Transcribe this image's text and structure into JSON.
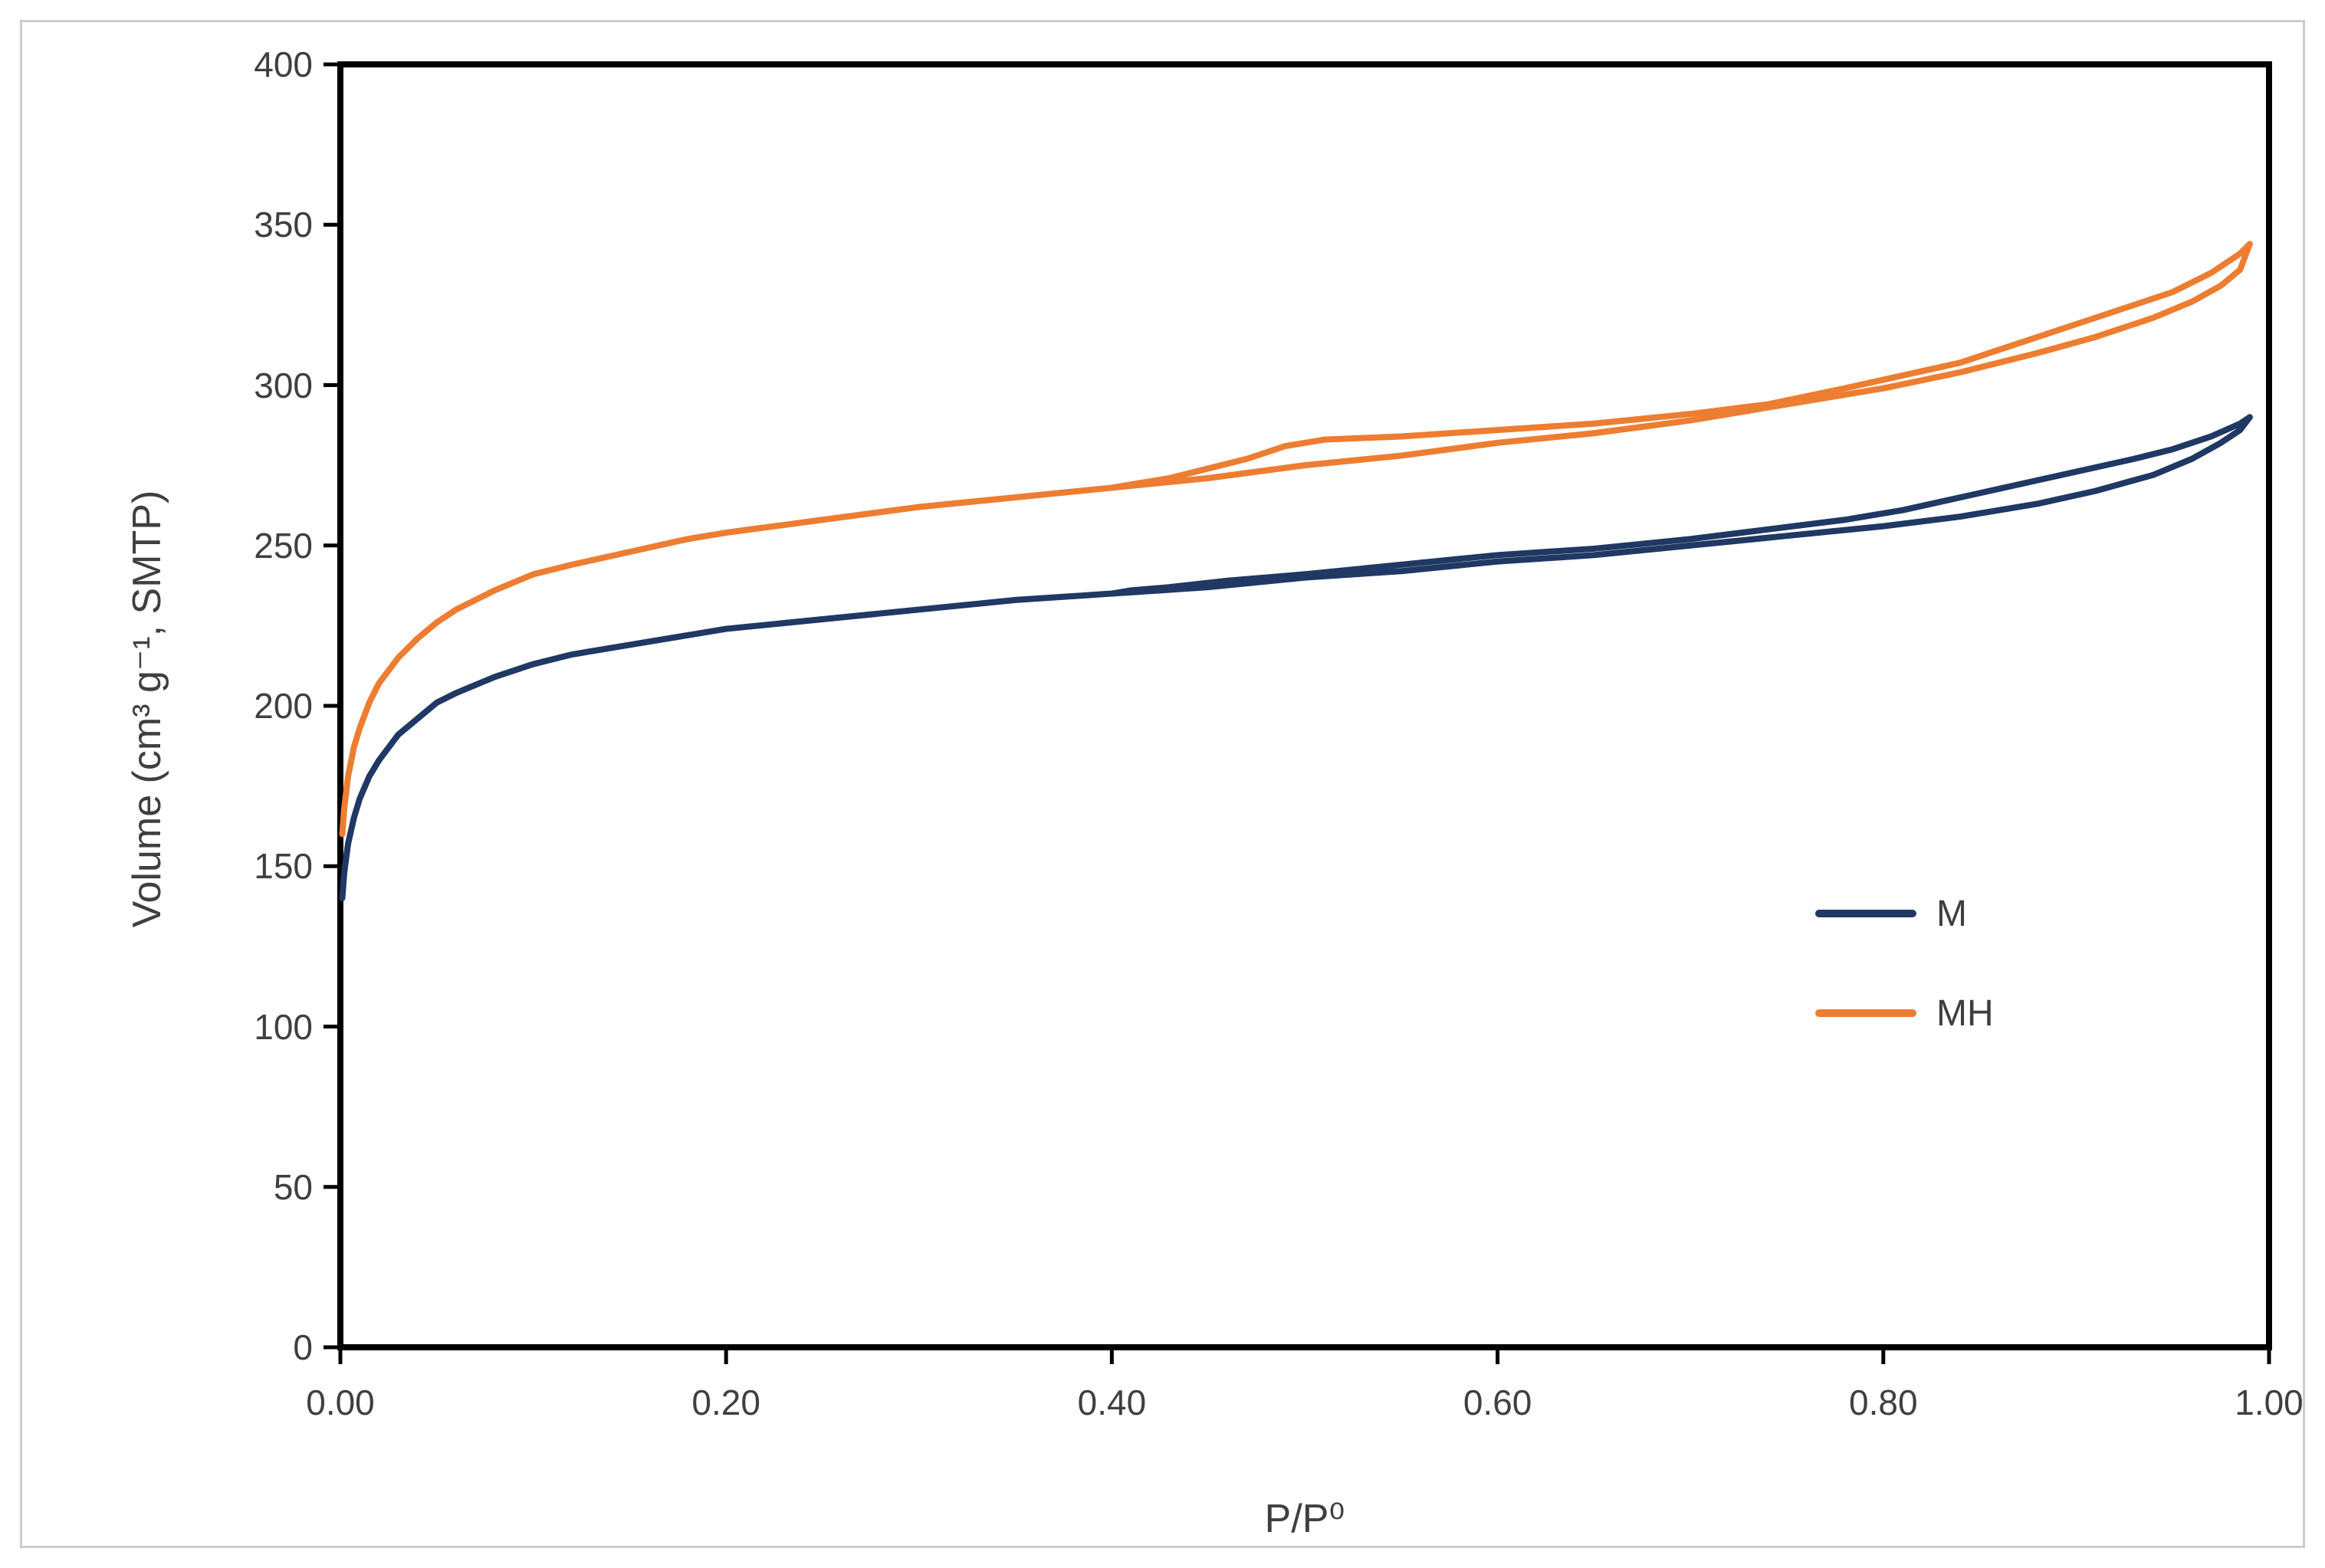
{
  "figure": {
    "background": "#ffffff",
    "frame_border_color": "#cdcdcd",
    "axis_color": "#000000",
    "label_color": "#3f3f3f"
  },
  "axes": {
    "y_label": "Volume (cm³ g⁻¹, SMTP)",
    "x_label": "P/P⁰",
    "y_ticks": [
      "0",
      "50",
      "100",
      "150",
      "200",
      "250",
      "300",
      "350",
      "400"
    ],
    "x_ticks": [
      "0.00",
      "0.20",
      "0.40",
      "0.60",
      "0.80",
      "1.00"
    ],
    "y_range": [
      0,
      400
    ],
    "x_range": [
      0,
      1
    ]
  },
  "legend": {
    "items": [
      {
        "label": "M",
        "color": "#1F3864"
      },
      {
        "label": "MH",
        "color": "#ED7D31"
      }
    ]
  },
  "chart_data": {
    "type": "line",
    "title": "",
    "xlabel": "P/P⁰",
    "ylabel": "Volume (cm³ g⁻¹, SMTP)",
    "xlim": [
      0,
      1
    ],
    "ylim": [
      0,
      400
    ],
    "grid": false,
    "legend_position": "inside-right-center",
    "description": "Nitrogen adsorption-desorption isotherms with hysteresis loops for samples M and MH",
    "series": [
      {
        "name": "M",
        "color": "#1F3864",
        "branches": {
          "adsorption": [
            [
              0.001,
              140
            ],
            [
              0.002,
              148
            ],
            [
              0.004,
              157
            ],
            [
              0.007,
              165
            ],
            [
              0.01,
              171
            ],
            [
              0.015,
              178
            ],
            [
              0.02,
              183
            ],
            [
              0.03,
              191
            ],
            [
              0.04,
              196
            ],
            [
              0.05,
              201
            ],
            [
              0.06,
              204
            ],
            [
              0.08,
              209
            ],
            [
              0.1,
              213
            ],
            [
              0.12,
              216
            ],
            [
              0.15,
              219
            ],
            [
              0.18,
              222
            ],
            [
              0.2,
              224
            ],
            [
              0.25,
              227
            ],
            [
              0.3,
              230
            ],
            [
              0.35,
              233
            ],
            [
              0.4,
              235
            ],
            [
              0.45,
              237
            ],
            [
              0.5,
              240
            ],
            [
              0.55,
              242
            ],
            [
              0.6,
              245
            ],
            [
              0.65,
              247
            ],
            [
              0.7,
              250
            ],
            [
              0.75,
              253
            ],
            [
              0.8,
              256
            ],
            [
              0.84,
              259
            ],
            [
              0.88,
              263
            ],
            [
              0.91,
              267
            ],
            [
              0.94,
              272
            ],
            [
              0.96,
              277
            ],
            [
              0.975,
              282
            ],
            [
              0.985,
              286
            ],
            [
              0.99,
              290
            ]
          ],
          "desorption": [
            [
              0.99,
              290
            ],
            [
              0.985,
              288
            ],
            [
              0.97,
              284
            ],
            [
              0.95,
              280
            ],
            [
              0.93,
              277
            ],
            [
              0.9,
              273
            ],
            [
              0.87,
              269
            ],
            [
              0.84,
              265
            ],
            [
              0.81,
              261
            ],
            [
              0.78,
              258
            ],
            [
              0.74,
              255
            ],
            [
              0.7,
              252
            ],
            [
              0.65,
              249
            ],
            [
              0.6,
              247
            ],
            [
              0.55,
              244
            ],
            [
              0.5,
              241
            ],
            [
              0.46,
              239
            ],
            [
              0.43,
              237
            ],
            [
              0.41,
              236
            ],
            [
              0.4,
              235
            ]
          ]
        }
      },
      {
        "name": "MH",
        "color": "#ED7D31",
        "branches": {
          "adsorption": [
            [
              0.001,
              160
            ],
            [
              0.002,
              168
            ],
            [
              0.004,
              178
            ],
            [
              0.007,
              187
            ],
            [
              0.01,
              193
            ],
            [
              0.015,
              201
            ],
            [
              0.02,
              207
            ],
            [
              0.03,
              215
            ],
            [
              0.04,
              221
            ],
            [
              0.05,
              226
            ],
            [
              0.06,
              230
            ],
            [
              0.08,
              236
            ],
            [
              0.1,
              241
            ],
            [
              0.12,
              244
            ],
            [
              0.15,
              248
            ],
            [
              0.18,
              252
            ],
            [
              0.2,
              254
            ],
            [
              0.25,
              258
            ],
            [
              0.3,
              262
            ],
            [
              0.35,
              265
            ],
            [
              0.4,
              268
            ],
            [
              0.45,
              271
            ],
            [
              0.5,
              275
            ],
            [
              0.55,
              278
            ],
            [
              0.6,
              282
            ],
            [
              0.65,
              285
            ],
            [
              0.7,
              289
            ],
            [
              0.75,
              294
            ],
            [
              0.8,
              299
            ],
            [
              0.84,
              304
            ],
            [
              0.88,
              310
            ],
            [
              0.91,
              315
            ],
            [
              0.94,
              321
            ],
            [
              0.96,
              326
            ],
            [
              0.975,
              331
            ],
            [
              0.985,
              336
            ],
            [
              0.99,
              344
            ]
          ],
          "desorption": [
            [
              0.99,
              344
            ],
            [
              0.985,
              341
            ],
            [
              0.97,
              335
            ],
            [
              0.95,
              329
            ],
            [
              0.93,
              325
            ],
            [
              0.9,
              319
            ],
            [
              0.87,
              313
            ],
            [
              0.84,
              307
            ],
            [
              0.81,
              303
            ],
            [
              0.78,
              299
            ],
            [
              0.74,
              294
            ],
            [
              0.7,
              291
            ],
            [
              0.65,
              288
            ],
            [
              0.6,
              286
            ],
            [
              0.55,
              284
            ],
            [
              0.51,
              283
            ],
            [
              0.49,
              281
            ],
            [
              0.47,
              277
            ],
            [
              0.45,
              274
            ],
            [
              0.43,
              271
            ],
            [
              0.41,
              269
            ],
            [
              0.4,
              268
            ]
          ]
        }
      }
    ]
  }
}
